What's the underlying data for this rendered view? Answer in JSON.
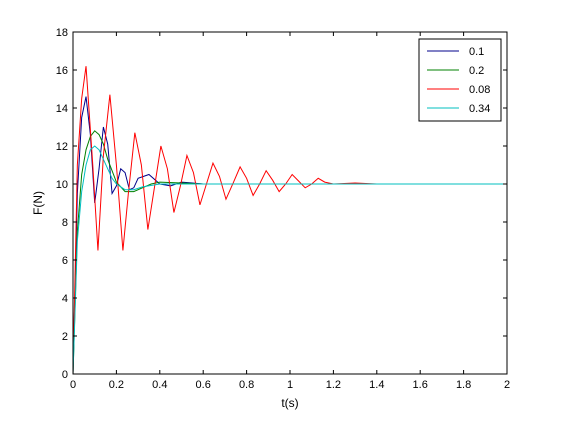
{
  "chart_data": {
    "type": "line",
    "title": "",
    "xlabel": "t(s)",
    "ylabel": "F(N)",
    "xlim": [
      0,
      2
    ],
    "ylim": [
      0,
      18
    ],
    "xticks": [
      0,
      0.2,
      0.4,
      0.6,
      0.8,
      1,
      1.2,
      1.4,
      1.6,
      1.8,
      2
    ],
    "xtick_labels": [
      "0",
      "0.2",
      "0.4",
      "0.6",
      "0.8",
      "1",
      "1.2",
      "1.4",
      "1.6",
      "1.8",
      "2"
    ],
    "yticks": [
      0,
      2,
      4,
      6,
      8,
      10,
      12,
      14,
      16,
      18
    ],
    "ytick_labels": [
      "0",
      "2",
      "4",
      "6",
      "8",
      "10",
      "12",
      "14",
      "16",
      "18"
    ],
    "grid": false,
    "legend_position": "top-right",
    "series": [
      {
        "name": "0.1",
        "color": "#00008b",
        "x": [
          0,
          0.02,
          0.04,
          0.06,
          0.08,
          0.1,
          0.12,
          0.14,
          0.16,
          0.18,
          0.2,
          0.22,
          0.24,
          0.26,
          0.28,
          0.3,
          0.35,
          0.4,
          0.45,
          0.5,
          0.55,
          0.6,
          0.7,
          0.8,
          1.0,
          1.2,
          1.4,
          1.6
        ],
        "y": [
          0,
          9.5,
          13.5,
          14.6,
          12.6,
          9.0,
          10.8,
          13.0,
          12.1,
          9.5,
          9.9,
          10.8,
          10.6,
          9.7,
          9.8,
          10.3,
          10.5,
          10.0,
          9.9,
          10.1,
          10.05,
          10.0,
          10.0,
          10.0,
          10.0,
          10.0,
          10.0,
          10.0
        ]
      },
      {
        "name": "0.2",
        "color": "#008000",
        "x": [
          0,
          0.02,
          0.04,
          0.06,
          0.08,
          0.1,
          0.12,
          0.14,
          0.16,
          0.18,
          0.2,
          0.24,
          0.28,
          0.32,
          0.36,
          0.4,
          0.5,
          0.6,
          0.7,
          0.8,
          1.0,
          1.2,
          1.4,
          1.6
        ],
        "y": [
          0,
          7.5,
          10.5,
          11.8,
          12.5,
          12.8,
          12.6,
          12.1,
          11.3,
          10.7,
          10.1,
          9.6,
          9.6,
          9.8,
          10.0,
          10.1,
          10.05,
          10.0,
          10.0,
          10.0,
          10.0,
          10.0,
          10.0,
          10.0
        ]
      },
      {
        "name": "0.08",
        "color": "#ff0000",
        "x": [
          0,
          0.02,
          0.04,
          0.06,
          0.09,
          0.115,
          0.14,
          0.17,
          0.2,
          0.23,
          0.255,
          0.285,
          0.315,
          0.345,
          0.375,
          0.405,
          0.435,
          0.465,
          0.495,
          0.525,
          0.555,
          0.585,
          0.615,
          0.645,
          0.675,
          0.705,
          0.74,
          0.77,
          0.8,
          0.83,
          0.86,
          0.89,
          0.92,
          0.95,
          0.98,
          1.01,
          1.04,
          1.07,
          1.1,
          1.13,
          1.16,
          1.2,
          1.3,
          1.4,
          1.5,
          1.6,
          1.7,
          1.8,
          2.0
        ],
        "y": [
          0,
          11,
          14.5,
          16.2,
          11.2,
          6.5,
          11.5,
          14.7,
          11.0,
          6.5,
          9.5,
          12.7,
          11.0,
          7.6,
          9.8,
          12.0,
          10.8,
          8.5,
          9.9,
          11.5,
          10.6,
          8.9,
          10.0,
          11.1,
          10.4,
          9.2,
          10.1,
          10.9,
          10.3,
          9.4,
          10.0,
          10.7,
          10.2,
          9.6,
          10.0,
          10.5,
          10.15,
          9.8,
          10.0,
          10.3,
          10.1,
          10.0,
          10.05,
          10.0,
          10.0,
          10.0,
          10.0,
          10.0,
          10.0
        ]
      },
      {
        "name": "0.34",
        "color": "#00bfbf",
        "x": [
          0,
          0.02,
          0.04,
          0.06,
          0.08,
          0.1,
          0.12,
          0.14,
          0.16,
          0.18,
          0.2,
          0.24,
          0.28,
          0.32,
          0.4,
          0.5,
          0.6,
          0.8,
          1.0,
          1.2,
          1.4,
          1.6,
          1.8,
          2.0
        ],
        "y": [
          0,
          7.0,
          9.6,
          11.0,
          11.8,
          12.0,
          11.8,
          11.3,
          10.8,
          10.3,
          10.0,
          9.7,
          9.7,
          9.85,
          10.0,
          10.0,
          10.0,
          10.0,
          10.0,
          10.0,
          10.0,
          10.0,
          10.0,
          10.0
        ]
      }
    ]
  }
}
